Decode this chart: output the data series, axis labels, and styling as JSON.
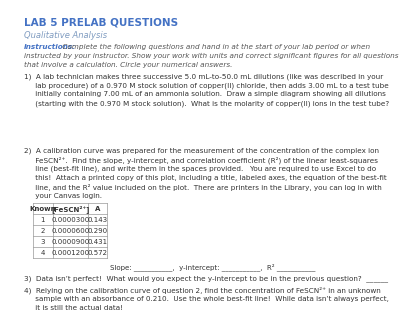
{
  "title": "LAB 5 PRELAB QUESTIONS",
  "subtitle": "Qualitative Analysis",
  "instructions_label": "Instructions:",
  "instructions_text": " Complete the following questions and hand in at the start of your lab period or when\ninstructed by your instructor. Show your work with units and correct significant figures for all questions\nthat involve a calculation. Circle your numerical answers.",
  "q1_line1": "1)  A lab technician makes three successive 5.0 mL-to-50.0 mL dilutions (like was described in your",
  "q1_line2": "     lab procedure) of a 0.970 M stock solution of copper(II) chloride, then adds 3.00 mL to a test tube",
  "q1_line3": "     initially containing 7.00 mL of an ammonia solution.  Draw a simple diagram showing all dilutions",
  "q1_line4": "     (starting with the 0.970 M stock solution).  What is the molarity of copper(II) ions in the test tube?",
  "q2_line1": "2)  A calibration curve was prepared for the measurement of the concentration of the complex ion",
  "q2_line2": "     FeSCN²⁺.  Find the slope, y-intercept, and correlation coefficient (R²) of the linear least-squares",
  "q2_line3": "     line (best-fit line), and write them in the spaces provided.   You are required to use Excel to do",
  "q2_line4": "     this!  Attach a printed copy of this plot, including a title, labeled axes, the equation of the best-fit",
  "q2_line5": "     line, and the R² value included on the plot.  There are printers in the Library, you can log in with",
  "q2_line6": "     your Canvas login.",
  "table_headers": [
    "Known",
    "[FeSCN²⁺]",
    "A"
  ],
  "table_rows": [
    [
      "1",
      "0.0000300",
      "0.143"
    ],
    [
      "2",
      "0.0000600",
      "0.290"
    ],
    [
      "3",
      "0.0000900",
      "0.431"
    ],
    [
      "4",
      "0.0001200",
      "0.572"
    ]
  ],
  "slope_line": "Slope: ___________,  y-intercept: ___________,  R² ___________",
  "q3": "3)  Data isn’t perfect!  What would you expect the y-intercept to be in the previous question?  ______",
  "q4_line1": "4)  Relying on the calibration curve of question 2, find the concentration of FeSCN²⁺ in an unknown",
  "q4_line2": "     sample with an absorbance of 0.210.  Use the whole best-fit line!  While data isn’t always perfect,",
  "q4_line3": "     it is still the actual data!",
  "bg_color": "#ffffff",
  "title_color": "#4472C4",
  "subtitle_color": "#7F9BC0",
  "instructions_label_color": "#4472C4",
  "instructions_text_color": "#555555",
  "body_color": "#333333",
  "title_fontsize": 7.5,
  "subtitle_fontsize": 6.0,
  "instructions_fontsize": 5.2,
  "body_fontsize": 5.2,
  "table_fontsize": 5.0
}
